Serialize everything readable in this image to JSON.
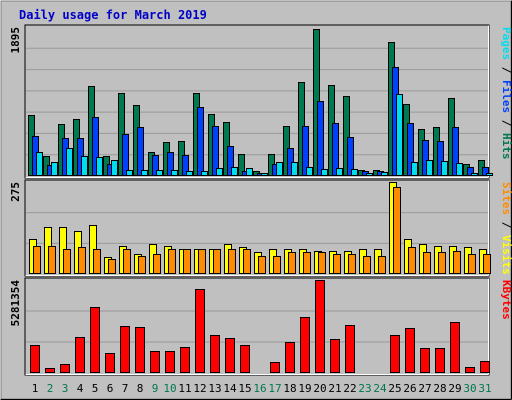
{
  "title": "Daily usage for March 2019",
  "colors": {
    "hits": "#007850",
    "files": "#0040ff",
    "pages": "#00ddee",
    "visits": "#ffff00",
    "sites": "#ff8c00",
    "kbytes": "#ff0000",
    "weekday_label": "#000000",
    "weekend_label": "#007850",
    "background": "#c0c0c0"
  },
  "side_labels": {
    "top": [
      "Pages",
      "Files",
      "Hits"
    ],
    "middle": [
      "Sites",
      "Visits"
    ],
    "bottom": [
      "KBytes"
    ],
    "separator": " / "
  },
  "chart_data": [
    {
      "type": "bar",
      "name": "hits-files-pages",
      "max_label": "1895",
      "ylim": [
        0,
        1895
      ],
      "categories": [
        "1",
        "2",
        "3",
        "4",
        "5",
        "6",
        "7",
        "8",
        "9",
        "10",
        "11",
        "12",
        "13",
        "14",
        "15",
        "16",
        "17",
        "18",
        "19",
        "20",
        "21",
        "22",
        "23",
        "24",
        "25",
        "26",
        "27",
        "28",
        "29",
        "30",
        "31"
      ],
      "series": [
        {
          "name": "Hits",
          "values": [
            780,
            260,
            660,
            720,
            1150,
            250,
            1050,
            900,
            310,
            430,
            450,
            1060,
            790,
            690,
            280,
            60,
            280,
            640,
            1200,
            1870,
            1160,
            1020,
            80,
            70,
            1700,
            920,
            600,
            620,
            990,
            150,
            200
          ]
        },
        {
          "name": "Files",
          "values": [
            510,
            140,
            480,
            480,
            750,
            150,
            540,
            620,
            270,
            300,
            270,
            880,
            630,
            380,
            60,
            40,
            150,
            360,
            630,
            960,
            680,
            500,
            60,
            60,
            1380,
            680,
            460,
            440,
            620,
            110,
            120
          ]
        },
        {
          "name": "Pages",
          "values": [
            300,
            180,
            350,
            250,
            240,
            200,
            80,
            70,
            70,
            80,
            60,
            60,
            100,
            110,
            100,
            40,
            180,
            180,
            110,
            90,
            100,
            90,
            40,
            50,
            1040,
            180,
            200,
            190,
            160,
            40,
            40
          ]
        }
      ]
    },
    {
      "type": "bar",
      "name": "visits-sites",
      "max_label": "275",
      "ylim": [
        0,
        275
      ],
      "categories": [
        "1",
        "2",
        "3",
        "4",
        "5",
        "6",
        "7",
        "8",
        "9",
        "10",
        "11",
        "12",
        "13",
        "14",
        "15",
        "16",
        "17",
        "18",
        "19",
        "20",
        "21",
        "22",
        "23",
        "24",
        "25",
        "26",
        "27",
        "28",
        "29",
        "30",
        "31"
      ],
      "series": [
        {
          "name": "Visits",
          "values": [
            105,
            140,
            140,
            130,
            145,
            50,
            85,
            60,
            90,
            85,
            75,
            75,
            75,
            90,
            80,
            65,
            75,
            75,
            75,
            70,
            70,
            70,
            75,
            75,
            275,
            105,
            90,
            85,
            85,
            80,
            75
          ]
        },
        {
          "name": "Sites",
          "values": [
            85,
            85,
            75,
            80,
            75,
            45,
            75,
            55,
            60,
            75,
            75,
            75,
            75,
            75,
            75,
            55,
            55,
            65,
            65,
            65,
            60,
            60,
            55,
            55,
            260,
            80,
            65,
            65,
            70,
            60,
            60
          ]
        }
      ]
    },
    {
      "type": "bar",
      "name": "kbytes",
      "max_label": "5281354",
      "ylim": [
        0,
        5281354
      ],
      "categories": [
        "1",
        "2",
        "3",
        "4",
        "5",
        "6",
        "7",
        "8",
        "9",
        "10",
        "11",
        "12",
        "13",
        "14",
        "15",
        "16",
        "17",
        "18",
        "19",
        "20",
        "21",
        "22",
        "23",
        "24",
        "25",
        "26",
        "27",
        "28",
        "29",
        "30",
        "31"
      ],
      "series": [
        {
          "name": "KBytes",
          "values": [
            1600000,
            300000,
            500000,
            2050000,
            3750000,
            1150000,
            2650000,
            2600000,
            1250000,
            1250000,
            1450000,
            4750000,
            2150000,
            2000000,
            1600000,
            0,
            600000,
            1750000,
            3200000,
            5281354,
            1950000,
            2700000,
            0,
            0,
            2150000,
            2550000,
            1400000,
            1400000,
            2900000,
            350000,
            700000
          ]
        }
      ]
    }
  ]
}
